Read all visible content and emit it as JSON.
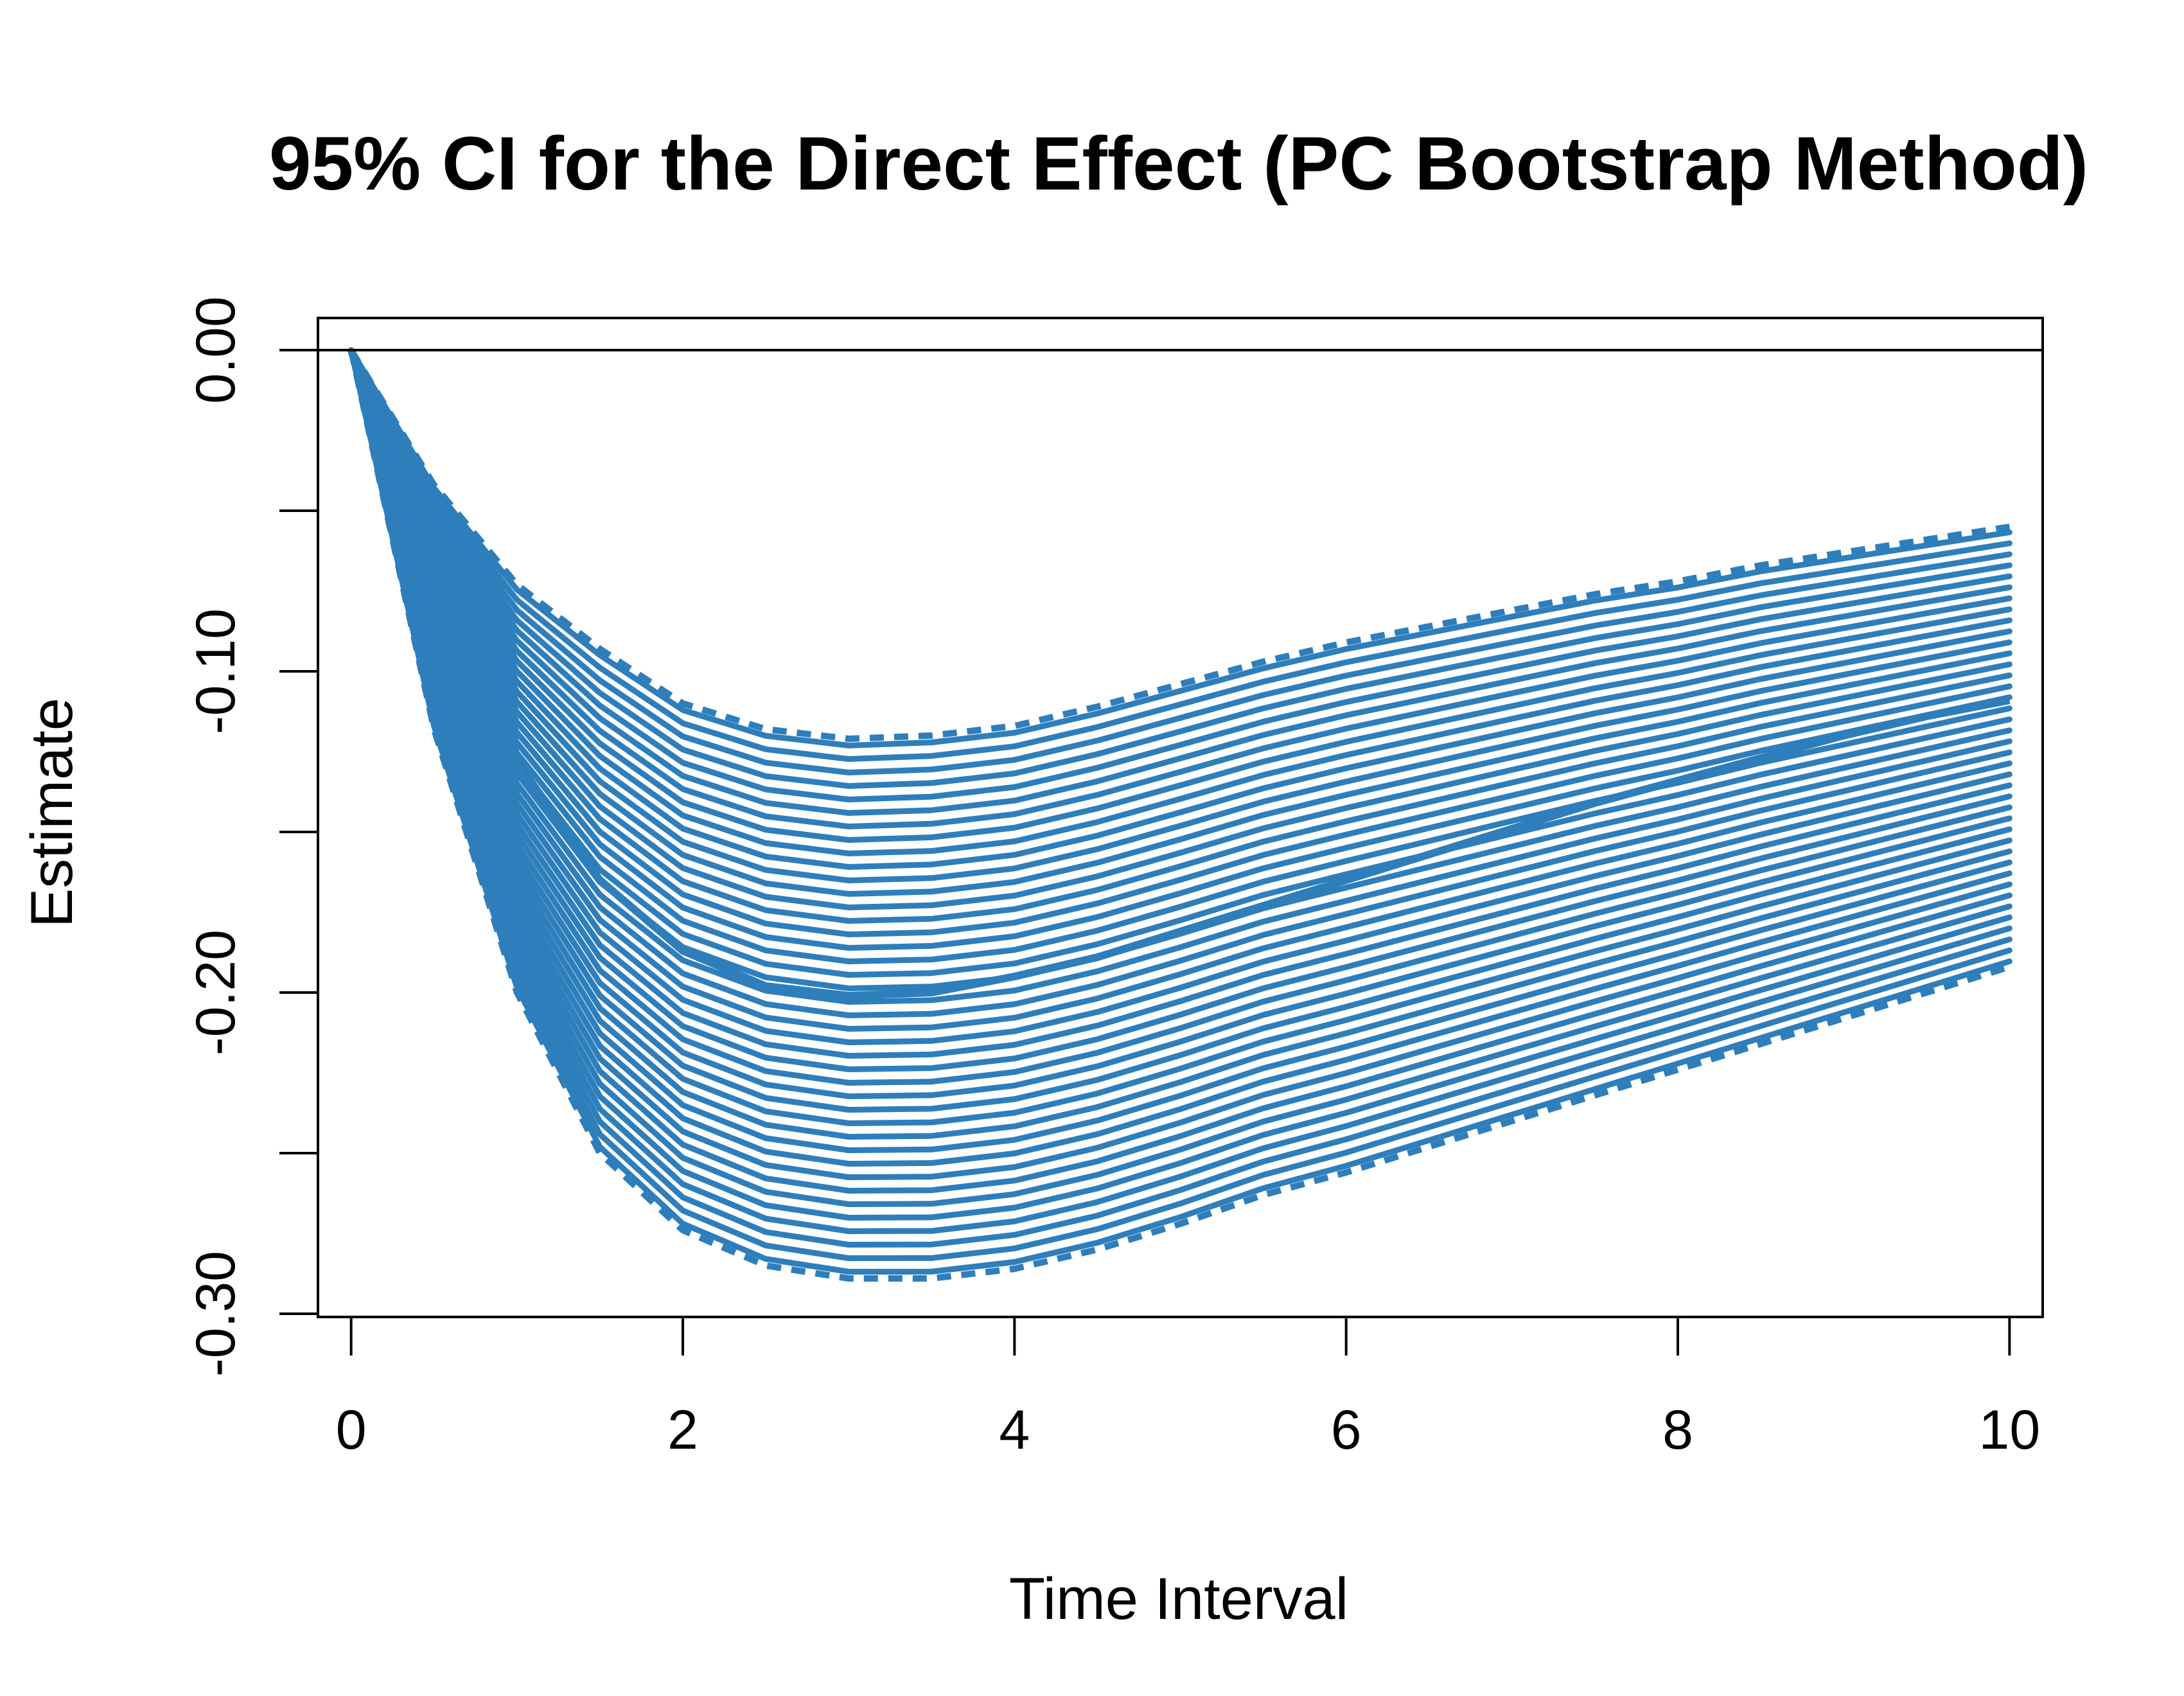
{
  "chart_data": {
    "type": "line",
    "title": "95% CI for the Direct Effect (PC Bootstrap Method)",
    "xlabel": "Time Interval",
    "ylabel": "Estimate",
    "xlim": [
      -0.2,
      10.2
    ],
    "ylim": [
      -0.301,
      0.01
    ],
    "x_ticks": [
      0,
      2,
      4,
      6,
      8,
      10
    ],
    "y_ticks": [
      0.0,
      -0.05,
      -0.1,
      -0.15,
      -0.2,
      -0.25,
      -0.3
    ],
    "x_tick_labels": [
      "0",
      "2",
      "4",
      "6",
      "8",
      "10"
    ],
    "y_tick_labels": [
      "0.00",
      "",
      "-0.10",
      "",
      "-0.20",
      "",
      "-0.30"
    ],
    "reference_line_y": 0.0,
    "grid": false,
    "legend": "none",
    "color": "#2e7ebc",
    "band_line_count": 40,
    "series": [
      {
        "style": "solid",
        "role": "estimate",
        "x": [
          0,
          0.5,
          1,
          1.5,
          2,
          2.5,
          3,
          3.5,
          4,
          4.5,
          5,
          5.5,
          6,
          6.5,
          7,
          7.5,
          8,
          8.5,
          9,
          9.5,
          10
        ],
        "values": [
          0.0,
          -0.075,
          -0.128,
          -0.165,
          -0.187,
          -0.198,
          -0.201,
          -0.2,
          -0.195,
          -0.189,
          -0.181,
          -0.173,
          -0.165,
          -0.157,
          -0.149,
          -0.141,
          -0.134,
          -0.127,
          -0.12,
          -0.114,
          -0.109
        ]
      },
      {
        "style": "dashed",
        "role": "upper-bound",
        "x": [
          0,
          0.5,
          1,
          1.5,
          2,
          2.5,
          3,
          3.5,
          4,
          4.5,
          5,
          5.5,
          6,
          6.5,
          7,
          7.5,
          8,
          8.5,
          9,
          9.5,
          10
        ],
        "values": [
          0.0,
          -0.042,
          -0.073,
          -0.093,
          -0.11,
          -0.118,
          -0.121,
          -0.12,
          -0.117,
          -0.111,
          -0.104,
          -0.097,
          -0.091,
          -0.086,
          -0.081,
          -0.076,
          -0.072,
          -0.067,
          -0.063,
          -0.059,
          -0.055
        ]
      },
      {
        "style": "dashed",
        "role": "lower-bound",
        "x": [
          0,
          0.5,
          1,
          1.5,
          2,
          2.5,
          3,
          3.5,
          4,
          4.5,
          5,
          5.5,
          6,
          6.5,
          7,
          7.5,
          8,
          8.5,
          9,
          9.5,
          10
        ],
        "values": [
          0.0,
          -0.118,
          -0.2,
          -0.25,
          -0.274,
          -0.285,
          -0.289,
          -0.289,
          -0.286,
          -0.28,
          -0.272,
          -0.263,
          -0.256,
          -0.248,
          -0.24,
          -0.232,
          -0.224,
          -0.216,
          -0.208,
          -0.2,
          -0.192
        ]
      }
    ]
  }
}
